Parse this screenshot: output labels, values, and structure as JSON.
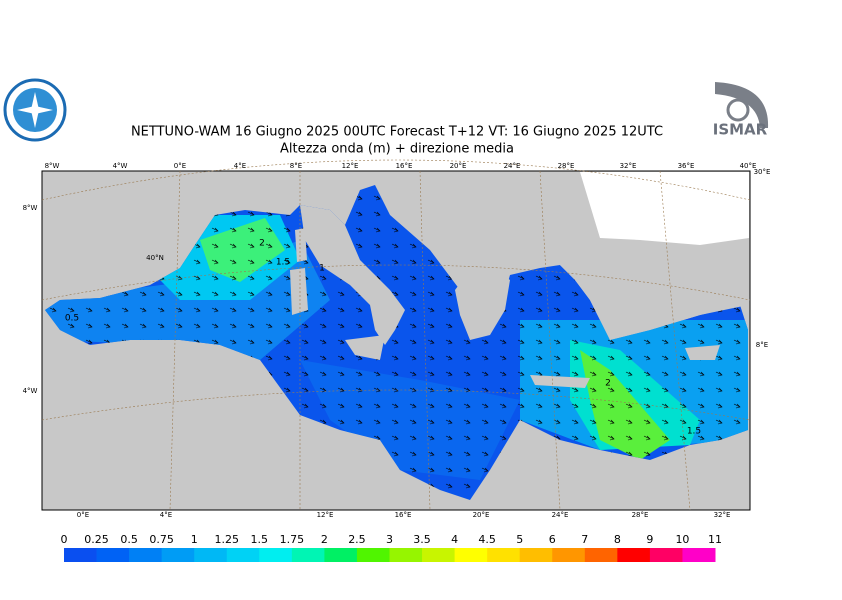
{
  "header": {
    "title": "NETTUNO-WAM  16   Giugno  2025 00UTC Forecast T+12 VT: 16   Giugno  2025 12UTC",
    "subtitle": "Altezza onda (m) + direzione media",
    "logo_right": "ISMAR"
  },
  "map": {
    "top_labels": [
      "8°W",
      "4°W",
      "0°E",
      "4°E",
      "8°E",
      "12°E",
      "16°E",
      "20°E",
      "24°E",
      "28°E",
      "32°E",
      "36°E",
      "40°E"
    ],
    "bottom_labels": [
      "0°E",
      "4°E",
      "12°E",
      "16°E",
      "20°E",
      "24°E",
      "28°E",
      "32°E"
    ],
    "left_labels": [
      "8°W",
      "4°W"
    ],
    "inner_labels": [
      "40°N"
    ],
    "right_labels": [
      "30°E",
      "8°E"
    ],
    "contour_labels": [
      "0.5",
      "2",
      "1.5",
      "1",
      "2",
      "1.5"
    ]
  },
  "legend": {
    "labels": [
      "0",
      "0.25",
      "0.5",
      "0.75",
      "1",
      "1.25",
      "1.5",
      "1.75",
      "2",
      "2.5",
      "3",
      "3.5",
      "4",
      "4.5",
      "5",
      "6",
      "7",
      "8",
      "9",
      "10",
      "11"
    ],
    "colors": [
      "#0a4ff0",
      "#0062f5",
      "#0080f5",
      "#009cf5",
      "#00b8f5",
      "#00d2f5",
      "#00eef0",
      "#00f5b4",
      "#00f064",
      "#50f500",
      "#96f500",
      "#c8f500",
      "#ffff00",
      "#ffe100",
      "#ffbe00",
      "#ff9600",
      "#ff6400",
      "#ff0000",
      "#ff0064",
      "#ff00c8"
    ]
  }
}
